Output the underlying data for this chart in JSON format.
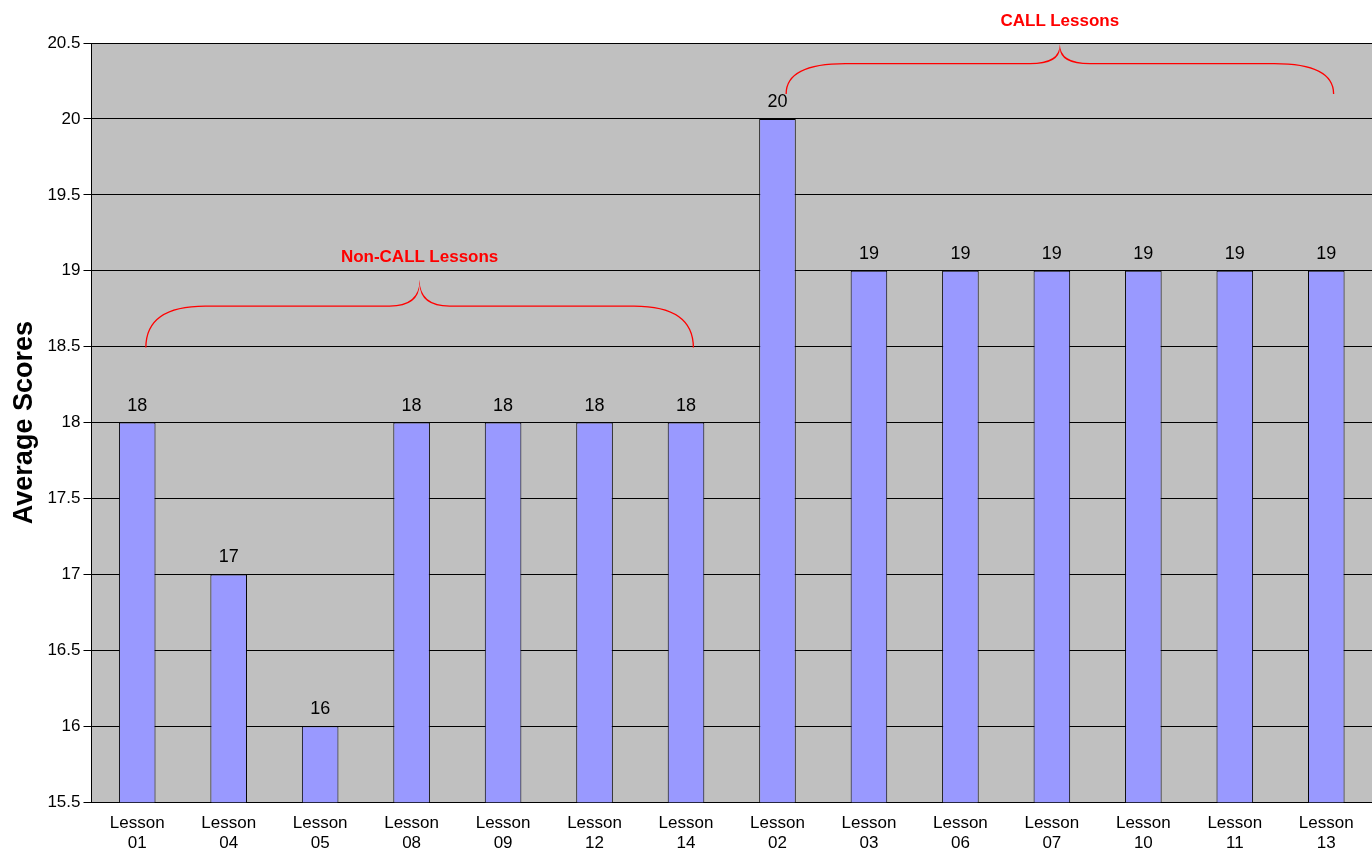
{
  "chart_data": {
    "type": "bar",
    "ylabel": "Average Scores",
    "categories": [
      "Lesson 01",
      "Lesson 04",
      "Lesson 05",
      "Lesson 08",
      "Lesson 09",
      "Lesson 12",
      "Lesson 14",
      "Lesson 02",
      "Lesson 03",
      "Lesson 06",
      "Lesson 07",
      "Lesson 10",
      "Lesson 11",
      "Lesson 13"
    ],
    "values": [
      18,
      17,
      16,
      18,
      18,
      18,
      18,
      20,
      19,
      19,
      19,
      19,
      19,
      19
    ],
    "color": "#9999ff",
    "ylim": [
      15.5,
      20.5
    ],
    "yticks": [
      15.5,
      16,
      16.5,
      17,
      17.5,
      18,
      18.5,
      19,
      19.5,
      20,
      20.5
    ],
    "grid": "y",
    "legend": false,
    "data_labels": true,
    "annotations": [
      "Non-CALL Lessons",
      "CALL Lessons"
    ]
  }
}
